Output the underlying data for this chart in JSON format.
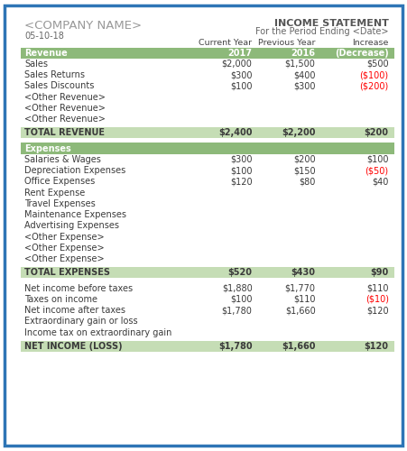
{
  "company_name": "<COMPANY NAME>",
  "date": "05-10-18",
  "title": "INCOME STATEMENT",
  "subtitle": "For the Period Ending <Date>",
  "revenue_rows": [
    [
      "Sales",
      "$2,000",
      "$1,500",
      "$500",
      "black"
    ],
    [
      "Sales Returns",
      "$300",
      "$400",
      "($100)",
      "red"
    ],
    [
      "Sales Discounts",
      "$100",
      "$300",
      "($200)",
      "red"
    ],
    [
      "<Other Revenue>",
      "",
      "",
      "",
      "black"
    ],
    [
      "<Other Revenue>",
      "",
      "",
      "",
      "black"
    ],
    [
      "<Other Revenue>",
      "",
      "",
      "",
      "black"
    ]
  ],
  "total_revenue_row": [
    "TOTAL REVENUE",
    "$2,400",
    "$2,200",
    "$200"
  ],
  "expense_rows": [
    [
      "Salaries & Wages",
      "$300",
      "$200",
      "$100",
      "black"
    ],
    [
      "Depreciation Expenses",
      "$100",
      "$150",
      "($50)",
      "red"
    ],
    [
      "Office Expenses",
      "$120",
      "$80",
      "$40",
      "black"
    ],
    [
      "Rent Expense",
      "",
      "",
      "",
      "black"
    ],
    [
      "Travel Expenses",
      "",
      "",
      "",
      "black"
    ],
    [
      "Maintenance Expenses",
      "",
      "",
      "",
      "black"
    ],
    [
      "Advertising Expenses",
      "",
      "",
      "",
      "black"
    ],
    [
      "<Other Expense>",
      "",
      "",
      "",
      "black"
    ],
    [
      "<Other Expense>",
      "",
      "",
      "",
      "black"
    ],
    [
      "<Other Expense>",
      "",
      "",
      "",
      "black"
    ]
  ],
  "total_expense_row": [
    "TOTAL EXPENSES",
    "$520",
    "$430",
    "$90"
  ],
  "net_rows": [
    [
      "Net income before taxes",
      "$1,880",
      "$1,770",
      "$110",
      "black"
    ],
    [
      "Taxes on income",
      "$100",
      "$110",
      "($10)",
      "red"
    ],
    [
      "Net income after taxes",
      "$1,780",
      "$1,660",
      "$120",
      "black"
    ],
    [
      "Extraordinary gain or loss",
      "",
      "",
      "",
      "black"
    ],
    [
      "Income tax on extraordinary gain",
      "",
      "",
      "",
      "black"
    ]
  ],
  "net_income_row": [
    "NET INCOME (LOSS)",
    "$1,780",
    "$1,660",
    "$120"
  ],
  "green_bg": "#8db97a",
  "green_light": "#c5ddb5",
  "border_color": "#2e75b6",
  "normal_text_color": "#3a3a3a",
  "bg_color": "#ffffff",
  "grid_color": "#c8c8c8"
}
